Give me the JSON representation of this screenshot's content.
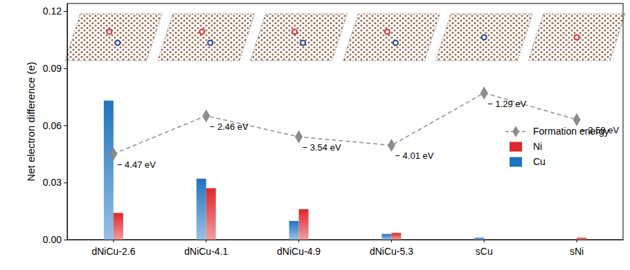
{
  "chart_data": {
    "type": "bar",
    "y_label": "Net electron difference  (e)",
    "categories": [
      "dNiCu-2.6",
      "dNiCu-4.1",
      "dNiCu-4.9",
      "dNiCu-5.3",
      "sCu",
      "sNi"
    ],
    "series": [
      {
        "name": "Formation energy",
        "type": "line",
        "color": "#8c8c8c",
        "marker": "diamond",
        "line_style": "dashed",
        "values": [
          0.045,
          0.065,
          0.054,
          0.0495,
          0.077,
          0.063
        ]
      },
      {
        "name": "Ni",
        "type": "bar",
        "color": "#e0262b",
        "values": [
          0.014,
          0.027,
          0.016,
          0.0035,
          0,
          0.001
        ]
      },
      {
        "name": "Cu",
        "type": "bar",
        "color": "#1f74c0",
        "values": [
          0.073,
          0.032,
          0.0098,
          0.003,
          0.001,
          0
        ]
      }
    ],
    "annotations": [
      "− 4.47 eV",
      "− 2.46 eV",
      "− 3.54 eV",
      "− 4.01 eV",
      "− 1.29 eV",
      "− 2.58 eV"
    ],
    "ylim": [
      0,
      0.124
    ],
    "yticks": [
      {
        "value": 0,
        "label": "0.00"
      },
      {
        "value": 0.03,
        "label": "0.03"
      },
      {
        "value": 0.06,
        "label": "0.06"
      },
      {
        "value": 0.09,
        "label": "0.09"
      },
      {
        "value": 0.12,
        "label": "0.12"
      }
    ],
    "legend": "right",
    "grid": false
  }
}
